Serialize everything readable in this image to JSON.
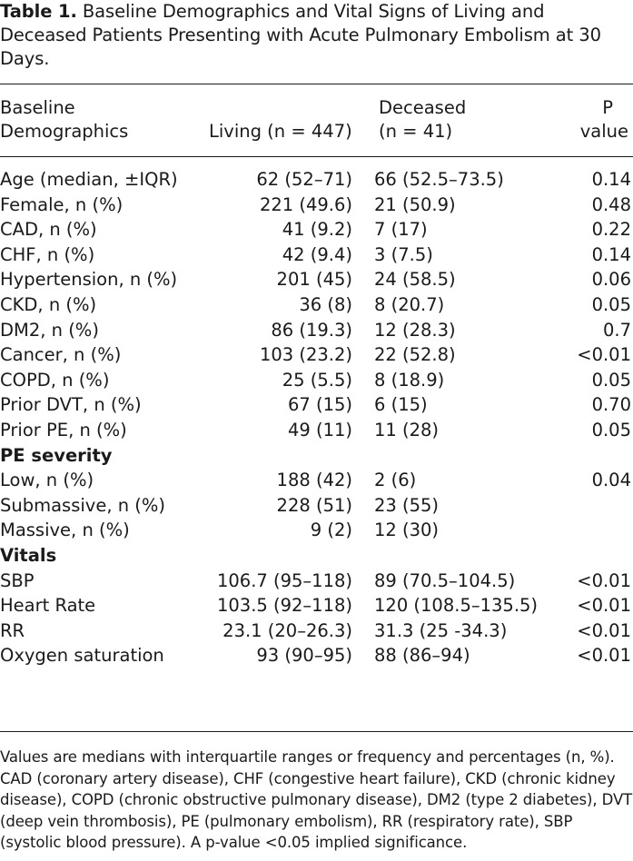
{
  "caption": {
    "label": "Table 1.",
    "text": "Baseline Demographics and Vital Signs of Living and Deceased Patients Presenting with Acute Pulmonary Embolism at 30 Days."
  },
  "header": {
    "col0_line1": "Baseline",
    "col0_line2": "Demographics",
    "col1": "Living (n = 447)",
    "col2_line1": "Deceased",
    "col2_line2": "(n = 41)",
    "col3_line1": "P",
    "col3_line2": "value"
  },
  "rows": [
    {
      "label": "Age (median, ±IQR)",
      "living": "62 (52–71)",
      "deceased": "66 (52.5–73.5)",
      "p": "0.14"
    },
    {
      "label": "Female, n (%)",
      "living": "221 (49.6)",
      "deceased": "21 (50.9)",
      "p": "0.48"
    },
    {
      "label": "CAD, n (%)",
      "living": "41 (9.2)",
      "deceased": "7 (17)",
      "p": "0.22"
    },
    {
      "label": "CHF, n (%)",
      "living": "42 (9.4)",
      "deceased": "3 (7.5)",
      "p": "0.14"
    },
    {
      "label": "Hypertension, n (%)",
      "living": "201 (45)",
      "deceased": "24 (58.5)",
      "p": "0.06"
    },
    {
      "label": "CKD, n (%)",
      "living": "36 (8)",
      "deceased": "8 (20.7)",
      "p": "0.05"
    },
    {
      "label": "DM2, n (%)",
      "living": "86 (19.3)",
      "deceased": "12 (28.3)",
      "p": "0.7"
    },
    {
      "label": "Cancer, n (%)",
      "living": "103 (23.2)",
      "deceased": "22 (52.8)",
      "p": "<0.01"
    },
    {
      "label": "COPD, n (%)",
      "living": "25 (5.5)",
      "deceased": "8 (18.9)",
      "p": "0.05"
    },
    {
      "label": "Prior DVT, n (%)",
      "living": "67 (15)",
      "deceased": "6 (15)",
      "p": "0.70"
    },
    {
      "label": "Prior PE, n (%)",
      "living": "49 (11)",
      "deceased": "11 (28)",
      "p": "0.05"
    },
    {
      "label": "PE severity",
      "living": "",
      "deceased": "",
      "p": "",
      "section": true
    },
    {
      "label": "Low, n (%)",
      "living": "188 (42)",
      "deceased": "2 (6)",
      "p": "0.04"
    },
    {
      "label": "Submassive, n (%)",
      "living": "228 (51)",
      "deceased": "23 (55)",
      "p": ""
    },
    {
      "label": "Massive, n (%)",
      "living": "9 (2)",
      "deceased": "12 (30)",
      "p": ""
    },
    {
      "label": "Vitals",
      "living": "",
      "deceased": "",
      "p": "",
      "section": true
    },
    {
      "label": "SBP",
      "living": "106.7 (95–118)",
      "deceased": "89 (70.5–104.5)",
      "p": "<0.01"
    },
    {
      "label": "Heart Rate",
      "living": "103.5 (92–118)",
      "deceased": "120 (108.5–135.5)",
      "p": "<0.01"
    },
    {
      "label": "RR",
      "living": "23.1 (20–26.3)",
      "deceased": "31.3 (25 -34.3)",
      "p": "<0.01"
    },
    {
      "label": "Oxygen saturation",
      "living": "93 (90–95)",
      "deceased": "88 (86–94)",
      "p": "<0.01"
    }
  ],
  "notes": "Values are medians with interquartile ranges or frequency and percentages (n, %). CAD (coronary artery disease), CHF (congestive heart failure), CKD (chronic kidney disease), COPD (chronic obstructive pulmonary disease), DM2 (type 2 diabetes), DVT (deep vein thrombosis), PE (pulmonary embolism), RR (respiratory rate), SBP (systolic blood pressure). A p-value <0.05 implied significance."
}
